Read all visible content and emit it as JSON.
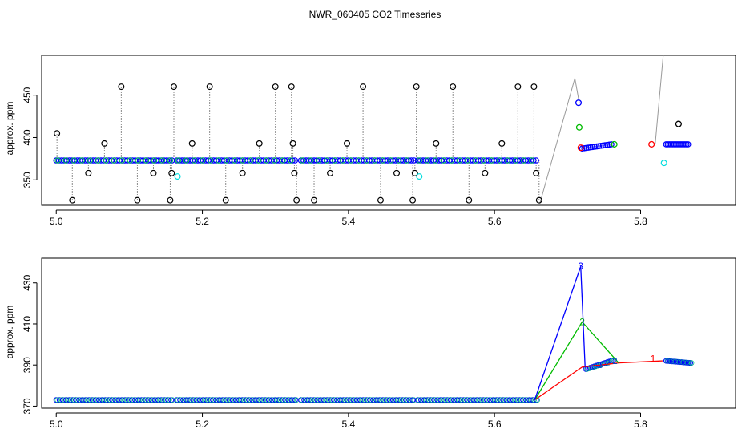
{
  "figure": {
    "title": "NWR_060405  CO2 Timeseries"
  },
  "chart_data": [
    {
      "type": "scatter",
      "panel": "top",
      "xlabel": "",
      "ylabel": "approx. ppm",
      "xlim": [
        4.98,
        5.93
      ],
      "ylim": [
        320,
        497
      ],
      "xticks": [
        5.0,
        5.2,
        5.4,
        5.6,
        5.8
      ],
      "xtick_labels": [
        "5.0",
        "5.2",
        "5.4",
        "5.6",
        "5.8"
      ],
      "yticks": [
        350,
        400,
        450
      ],
      "ytick_labels": [
        "350",
        "400",
        "450"
      ],
      "baseline_ppm": 373,
      "baseline_segments": [
        [
          5.0,
          5.16
        ],
        [
          5.165,
          5.33
        ],
        [
          5.335,
          5.49
        ],
        [
          5.495,
          5.66
        ]
      ],
      "spikes": [
        {
          "x": 5.001,
          "y": 405
        },
        {
          "x": 5.022,
          "y": 326
        },
        {
          "x": 5.044,
          "y": 358
        },
        {
          "x": 5.066,
          "y": 393
        },
        {
          "x": 5.089,
          "y": 460
        },
        {
          "x": 5.111,
          "y": 326
        },
        {
          "x": 5.133,
          "y": 358
        },
        {
          "x": 5.156,
          "y": 326
        },
        {
          "x": 5.158,
          "y": 358
        },
        {
          "x": 5.161,
          "y": 460
        },
        {
          "x": 5.186,
          "y": 393
        },
        {
          "x": 5.21,
          "y": 460
        },
        {
          "x": 5.232,
          "y": 326
        },
        {
          "x": 5.255,
          "y": 358
        },
        {
          "x": 5.278,
          "y": 393
        },
        {
          "x": 5.3,
          "y": 460
        },
        {
          "x": 5.322,
          "y": 460
        },
        {
          "x": 5.324,
          "y": 393
        },
        {
          "x": 5.326,
          "y": 358
        },
        {
          "x": 5.329,
          "y": 326
        },
        {
          "x": 5.353,
          "y": 326
        },
        {
          "x": 5.375,
          "y": 358
        },
        {
          "x": 5.398,
          "y": 393
        },
        {
          "x": 5.42,
          "y": 460
        },
        {
          "x": 5.444,
          "y": 326
        },
        {
          "x": 5.466,
          "y": 358
        },
        {
          "x": 5.488,
          "y": 326
        },
        {
          "x": 5.491,
          "y": 358
        },
        {
          "x": 5.493,
          "y": 460
        },
        {
          "x": 5.52,
          "y": 393
        },
        {
          "x": 5.543,
          "y": 460
        },
        {
          "x": 5.565,
          "y": 326
        },
        {
          "x": 5.587,
          "y": 358
        },
        {
          "x": 5.61,
          "y": 393
        },
        {
          "x": 5.632,
          "y": 460
        },
        {
          "x": 5.654,
          "y": 460
        },
        {
          "x": 5.657,
          "y": 358
        },
        {
          "x": 5.661,
          "y": 326
        }
      ],
      "cyan_points": [
        {
          "x": 5.166,
          "y": 354
        },
        {
          "x": 5.497,
          "y": 354
        },
        {
          "x": 5.832,
          "y": 370
        }
      ],
      "calibration_points": [
        {
          "x": 5.715,
          "y": 441,
          "color": "#0000ff"
        },
        {
          "x": 5.716,
          "y": 412,
          "color": "#00bb00"
        },
        {
          "x": 5.718,
          "y": 388,
          "color": "#ff0000"
        },
        {
          "x": 5.764,
          "y": 392,
          "color": "#00bb00"
        },
        {
          "x": 5.815,
          "y": 392,
          "color": "#ff0000"
        },
        {
          "x": 5.852,
          "y": 416,
          "color": "#000000"
        }
      ],
      "after_segments": [
        {
          "start": [
            5.72,
            387
          ],
          "end": [
            5.76,
            392
          ]
        },
        {
          "start": [
            5.835,
            392
          ],
          "end": [
            5.865,
            392
          ]
        }
      ],
      "grey_line": [
        [
          5.662,
          322
        ],
        [
          5.71,
          470
        ],
        [
          5.716,
          441
        ]
      ],
      "grey_line_2": [
        [
          5.82,
          392
        ],
        [
          5.831,
          497
        ]
      ]
    },
    {
      "type": "line",
      "panel": "bottom",
      "xlabel": "",
      "ylabel": "approx. ppm",
      "xlim": [
        4.98,
        5.93
      ],
      "ylim": [
        369,
        442
      ],
      "xticks": [
        5.0,
        5.2,
        5.4,
        5.6,
        5.8
      ],
      "xtick_labels": [
        "5.0",
        "5.2",
        "5.4",
        "5.6",
        "5.8"
      ],
      "yticks": [
        370,
        390,
        410,
        430
      ],
      "ytick_labels": [
        "370",
        "390",
        "410",
        "430"
      ],
      "baseline_ppm": 373,
      "baseline_segments": [
        [
          5.0,
          5.16
        ],
        [
          5.165,
          5.33
        ],
        [
          5.335,
          5.49
        ],
        [
          5.495,
          5.66
        ]
      ],
      "series": [
        {
          "name": "1",
          "label": "1",
          "color": "#ff0000",
          "x": [
            5.655,
            5.72,
            5.77,
            5.83
          ],
          "y": [
            373,
            389,
            391,
            392
          ],
          "label_x": 5.817,
          "label_y": 393
        },
        {
          "name": "2",
          "label": "2",
          "color": "#00bb00",
          "x": [
            5.655,
            5.72,
            5.77
          ],
          "y": [
            373,
            411,
            391
          ],
          "label_x": 5.72,
          "label_y": 411
        },
        {
          "name": "3",
          "label": "3",
          "color": "#0000ff",
          "x": [
            5.655,
            5.718,
            5.724
          ],
          "y": [
            373,
            438,
            389
          ],
          "label_x": 5.718,
          "label_y": 438
        }
      ],
      "cluster_points": [
        {
          "x": 5.745,
          "y": 390,
          "label": "3"
        },
        {
          "x": 5.755,
          "y": 391,
          "label": "2"
        },
        {
          "x": 5.765,
          "y": 392,
          "label": "2"
        }
      ],
      "after_segments": [
        {
          "start": [
            5.725,
            388
          ],
          "end": [
            5.76,
            392
          ]
        },
        {
          "start": [
            5.835,
            392
          ],
          "end": [
            5.868,
            391
          ]
        }
      ]
    }
  ]
}
